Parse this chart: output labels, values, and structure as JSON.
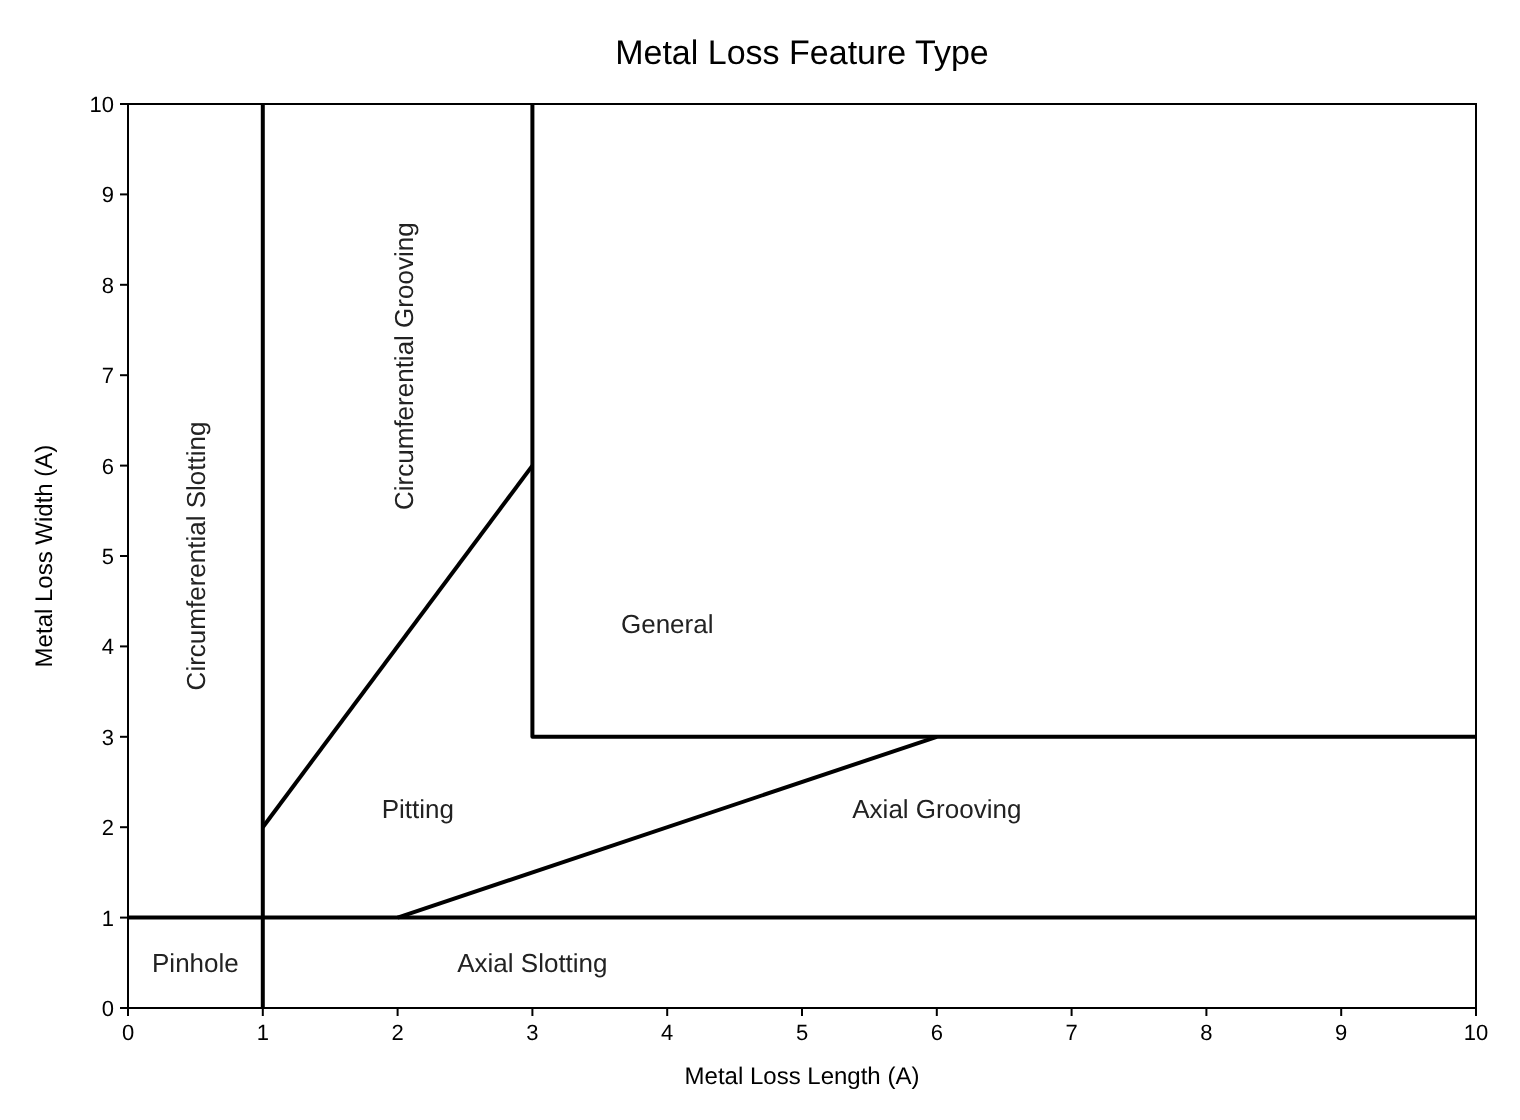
{
  "chart_data": {
    "type": "line",
    "title": "Metal Loss Feature Type",
    "xlabel": "Metal Loss Length (A)",
    "ylabel": "Metal Loss Width (A)",
    "xlim": [
      0,
      10
    ],
    "ylim": [
      0,
      10
    ],
    "xticks": [
      0,
      1,
      2,
      3,
      4,
      5,
      6,
      7,
      8,
      9,
      10
    ],
    "yticks": [
      0,
      1,
      2,
      3,
      4,
      5,
      6,
      7,
      8,
      9,
      10
    ],
    "grid": false,
    "marker": "none",
    "line_style": "solid",
    "series": [
      {
        "color": "#000000",
        "x": [
          1,
          1
        ],
        "values": [
          0,
          10
        ]
      },
      {
        "color": "#000000",
        "x": [
          1,
          3
        ],
        "values": [
          2,
          6
        ]
      },
      {
        "color": "#000000",
        "x": [
          3,
          3,
          10
        ],
        "values": [
          10,
          3,
          3
        ]
      },
      {
        "color": "#000000",
        "x": [
          0,
          10
        ],
        "values": [
          1,
          1
        ]
      },
      {
        "color": "#000000",
        "x": [
          2,
          6
        ],
        "values": [
          1,
          3
        ]
      }
    ],
    "annotations": [
      "Circumferential Slotting",
      "Circumferential Grooving",
      "General",
      "Pitting",
      "Axial Grooving",
      "Pinhole",
      "Axial Slotting"
    ]
  }
}
